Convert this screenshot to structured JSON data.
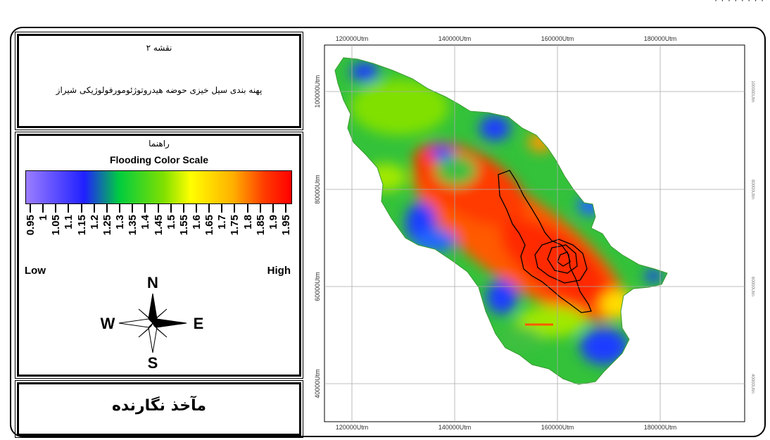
{
  "title_panel": {
    "map_no": "نقشه ۲",
    "description": "پهنه بندی سیل خیزی حوضه هیدروتوژئومورفولوژیکی شیراز"
  },
  "legend": {
    "heading": "راهنما",
    "scale_title": "Flooding Color Scale",
    "tick_labels": [
      "0.95",
      "1",
      "1.05",
      "1.1",
      "1.15",
      "1.2",
      "1.25",
      "1.3",
      "1.35",
      "1.4",
      "1.45",
      "1.5",
      "1.55",
      "1.6",
      "1.65",
      "1.7",
      "1.75",
      "1.8",
      "1.85",
      "1.9",
      "1.95"
    ],
    "low": "Low",
    "high": "High",
    "ramp_colors": [
      "#9b7dff",
      "#2020ff",
      "#00cc40",
      "#80e000",
      "#ffff00",
      "#ffb000",
      "#ff3a00",
      "#ff0000"
    ]
  },
  "compass": {
    "n": "N",
    "s": "S",
    "e": "E",
    "w": "W"
  },
  "source": "مآخذ نگارنده",
  "map": {
    "x_ticks": [
      "120000Utm",
      "140000Utm",
      "160000Utm",
      "180000Utm"
    ],
    "y_ticks": [
      "100000Utm",
      "80000Utm",
      "60000Utm",
      "40000Utm"
    ]
  }
}
